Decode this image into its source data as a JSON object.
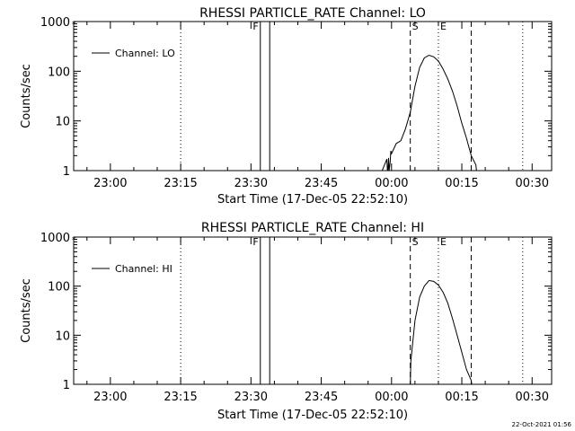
{
  "footer": {
    "timestamp": "22-Oct-2021 01:56"
  },
  "chart_data": [
    {
      "type": "line",
      "title": "RHESSI PARTICLE_RATE Channel: LO",
      "xlabel": "Start Time (17-Dec-05 22:52:10)",
      "ylabel": "Counts/sec",
      "yscale": "log",
      "ylim": [
        1,
        1000
      ],
      "xlim_minutes_after_start": [
        0,
        102
      ],
      "xticks": [
        "23:00",
        "23:15",
        "23:30",
        "23:45",
        "00:00",
        "00:15",
        "00:30"
      ],
      "yticks": [
        "1",
        "10",
        "100",
        "1000"
      ],
      "legend": {
        "entries": [
          "Channel: LO"
        ],
        "placement": "top-left"
      },
      "grid": false,
      "markers": [
        {
          "label": "F",
          "time": "23:30"
        },
        {
          "label": "S",
          "time": "00:04"
        },
        {
          "label": "E",
          "time": "00:10"
        }
      ],
      "vlines": [
        {
          "time": "23:15",
          "style": "dotted"
        },
        {
          "time": "23:32",
          "style": "solid"
        },
        {
          "time": "23:34",
          "style": "solid"
        },
        {
          "time": "00:04",
          "style": "dashed"
        },
        {
          "time": "00:10",
          "style": "dotted"
        },
        {
          "time": "00:17",
          "style": "dashed"
        },
        {
          "time": "00:28",
          "style": "dotted"
        }
      ],
      "series": [
        {
          "name": "Channel: LO",
          "x": [
            "23:55",
            "23:58",
            "23:59",
            "23:59",
            "23:59",
            "23:59",
            "23:59",
            "23:59",
            "23:59",
            "23:59",
            "00:00",
            "00:01",
            "00:02",
            "00:03",
            "00:04",
            "00:05",
            "00:06",
            "00:07",
            "00:08",
            "00:09",
            "00:10",
            "00:11",
            "00:12",
            "00:13",
            "00:14",
            "00:15",
            "00:16",
            "00:17",
            "00:18",
            "00:18",
            "00:18"
          ],
          "y": [
            1,
            1,
            1.7,
            1,
            1,
            1.8,
            1,
            1.2,
            1.5,
            2.5,
            2.2,
            3.5,
            4,
            7,
            15,
            50,
            120,
            185,
            210,
            195,
            160,
            110,
            70,
            40,
            20,
            9,
            4.5,
            2,
            1.3,
            1,
            1
          ]
        }
      ]
    },
    {
      "type": "line",
      "title": "RHESSI PARTICLE_RATE Channel: HI",
      "xlabel": "Start Time (17-Dec-05 22:52:10)",
      "ylabel": "Counts/sec",
      "yscale": "log",
      "ylim": [
        1,
        1000
      ],
      "xlim_minutes_after_start": [
        0,
        102
      ],
      "xticks": [
        "23:00",
        "23:15",
        "23:30",
        "23:45",
        "00:00",
        "00:15",
        "00:30"
      ],
      "yticks": [
        "1",
        "10",
        "100",
        "1000"
      ],
      "legend": {
        "entries": [
          "Channel: HI"
        ],
        "placement": "top-left"
      },
      "grid": false,
      "markers": [
        {
          "label": "F",
          "time": "23:30"
        },
        {
          "label": "S",
          "time": "00:04"
        },
        {
          "label": "E",
          "time": "00:10"
        }
      ],
      "vlines": [
        {
          "time": "23:15",
          "style": "dotted"
        },
        {
          "time": "23:32",
          "style": "solid"
        },
        {
          "time": "23:34",
          "style": "solid"
        },
        {
          "time": "00:04",
          "style": "dashed"
        },
        {
          "time": "00:10",
          "style": "dotted"
        },
        {
          "time": "00:17",
          "style": "dashed"
        },
        {
          "time": "00:28",
          "style": "dotted"
        }
      ],
      "series": [
        {
          "name": "Channel: HI",
          "x": [
            "00:03",
            "00:04",
            "00:04",
            "00:05",
            "00:06",
            "00:07",
            "00:08",
            "00:09",
            "00:10",
            "00:11",
            "00:12",
            "00:13",
            "00:14",
            "00:15",
            "00:16",
            "00:17",
            "00:17"
          ],
          "y": [
            1,
            1,
            3,
            20,
            60,
            100,
            130,
            125,
            105,
            75,
            45,
            22,
            10,
            4.5,
            2,
            1.2,
            1
          ]
        }
      ]
    }
  ]
}
